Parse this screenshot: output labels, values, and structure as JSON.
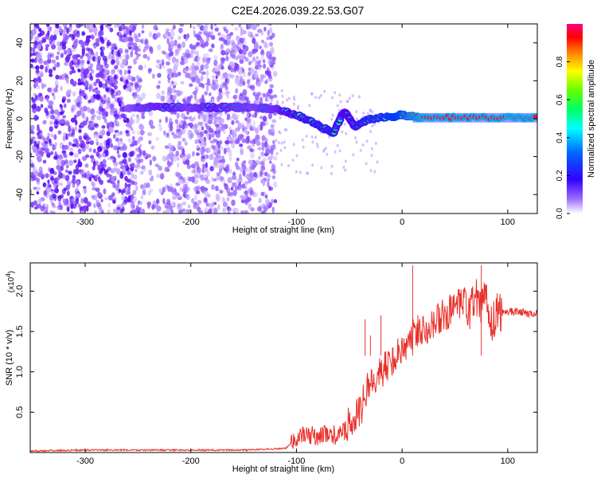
{
  "title": "C2E4.2026.039.22.53.G07",
  "colors": {
    "background": "#ffffff",
    "axis": "#000000",
    "snr_line": "#e8302a",
    "spectrogram_low": "#6a00ff",
    "spectrogram_high": "#ff0000"
  },
  "chart_data": [
    {
      "name": "spectrogram",
      "type": "heatmap",
      "xlabel": "Height of straight line (km)",
      "ylabel": "Frequency (Hz)",
      "xlim": [
        -352,
        128
      ],
      "ylim": [
        -50,
        50
      ],
      "x_ticks": [
        -300,
        -200,
        -100,
        0,
        100
      ],
      "x_tick_labels": [
        "-300",
        "-200",
        "-100",
        "0",
        "100"
      ],
      "y_ticks": [
        -40,
        -20,
        0,
        20,
        40
      ],
      "y_tick_labels": [
        "-40",
        "-20",
        "0",
        "20",
        "40"
      ],
      "colorbar": {
        "label": "Normalized spectral amplitude",
        "range": [
          0,
          1
        ],
        "ticks": [
          0.0,
          0.2,
          0.4,
          0.6,
          0.8
        ],
        "tick_labels": [
          "0.0",
          "0.2",
          "0.4",
          "0.6",
          "0.8"
        ],
        "colors": [
          "#ffffff",
          "#6a00ff",
          "#0000ff",
          "#00ffff",
          "#00ff00",
          "#ffff00",
          "#ff8000",
          "#ff0000",
          "#ff0080"
        ]
      },
      "ridge": [
        {
          "x": -260,
          "y": 6,
          "amp": 0.3
        },
        {
          "x": -240,
          "y": 6,
          "amp": 0.4
        },
        {
          "x": -220,
          "y": 6,
          "amp": 0.45
        },
        {
          "x": -200,
          "y": 6,
          "amp": 0.35
        },
        {
          "x": -180,
          "y": 6,
          "amp": 0.45
        },
        {
          "x": -160,
          "y": 6,
          "amp": 0.4
        },
        {
          "x": -140,
          "y": 6,
          "amp": 0.35
        },
        {
          "x": -120,
          "y": 5,
          "amp": 0.4
        },
        {
          "x": -100,
          "y": 2,
          "amp": 0.55
        },
        {
          "x": -80,
          "y": -3,
          "amp": 0.6
        },
        {
          "x": -65,
          "y": -8,
          "amp": 0.6
        },
        {
          "x": -55,
          "y": 4,
          "amp": 0.5
        },
        {
          "x": -45,
          "y": -4,
          "amp": 0.55
        },
        {
          "x": -30,
          "y": 0,
          "amp": 0.65
        },
        {
          "x": -10,
          "y": 1,
          "amp": 0.75
        },
        {
          "x": 0,
          "y": 2,
          "amp": 0.8
        },
        {
          "x": 20,
          "y": 0.5,
          "amp": 0.95
        },
        {
          "x": 60,
          "y": 0.5,
          "amp": 0.95
        },
        {
          "x": 100,
          "y": 0.5,
          "amp": 0.95
        },
        {
          "x": 128,
          "y": 0.5,
          "amp": 0.95
        }
      ]
    },
    {
      "name": "snr",
      "type": "line",
      "xlabel": "Height of straight line (km)",
      "ylabel": "SNR (10 * v/v)",
      "y_multiplier_label": "(x10",
      "y_multiplier_exp": "4",
      "y_multiplier_close": ")",
      "xlim": [
        -352,
        128
      ],
      "ylim": [
        0,
        2.35
      ],
      "x_ticks": [
        -300,
        -200,
        -100,
        0,
        100
      ],
      "x_tick_labels": [
        "-300",
        "-200",
        "-100",
        "0",
        "100"
      ],
      "y_ticks": [
        0.5,
        1.0,
        1.5,
        2.0
      ],
      "y_tick_labels": [
        "0.5",
        "1.0",
        "1.5",
        "2.0"
      ],
      "series": [
        {
          "name": "SNR",
          "x": [
            -352,
            -300,
            -250,
            -200,
            -150,
            -110,
            -100,
            -90,
            -80,
            -70,
            -60,
            -50,
            -45,
            -40,
            -35,
            -30,
            -25,
            -20,
            -15,
            -10,
            -5,
            0,
            5,
            10,
            15,
            20,
            30,
            40,
            50,
            60,
            65,
            70,
            75,
            80,
            85,
            90,
            100,
            110,
            120,
            128
          ],
          "y": [
            0.02,
            0.03,
            0.03,
            0.03,
            0.03,
            0.05,
            0.18,
            0.22,
            0.2,
            0.24,
            0.2,
            0.35,
            0.45,
            0.5,
            0.7,
            0.9,
            0.95,
            1.0,
            1.05,
            1.15,
            1.2,
            1.3,
            1.35,
            1.45,
            1.5,
            1.55,
            1.6,
            1.7,
            1.78,
            1.85,
            1.75,
            1.9,
            1.8,
            1.95,
            1.6,
            1.72,
            1.75,
            1.75,
            1.72,
            1.72
          ],
          "spikes": [
            {
              "x": -35,
              "y": 1.65
            },
            {
              "x": -30,
              "y": 1.45
            },
            {
              "x": -20,
              "y": 1.7
            },
            {
              "x": 10,
              "y": 2.32
            },
            {
              "x": 12,
              "y": 0.3
            },
            {
              "x": 75,
              "y": 2.32
            },
            {
              "x": 78,
              "y": 1.05
            }
          ]
        }
      ]
    }
  ]
}
